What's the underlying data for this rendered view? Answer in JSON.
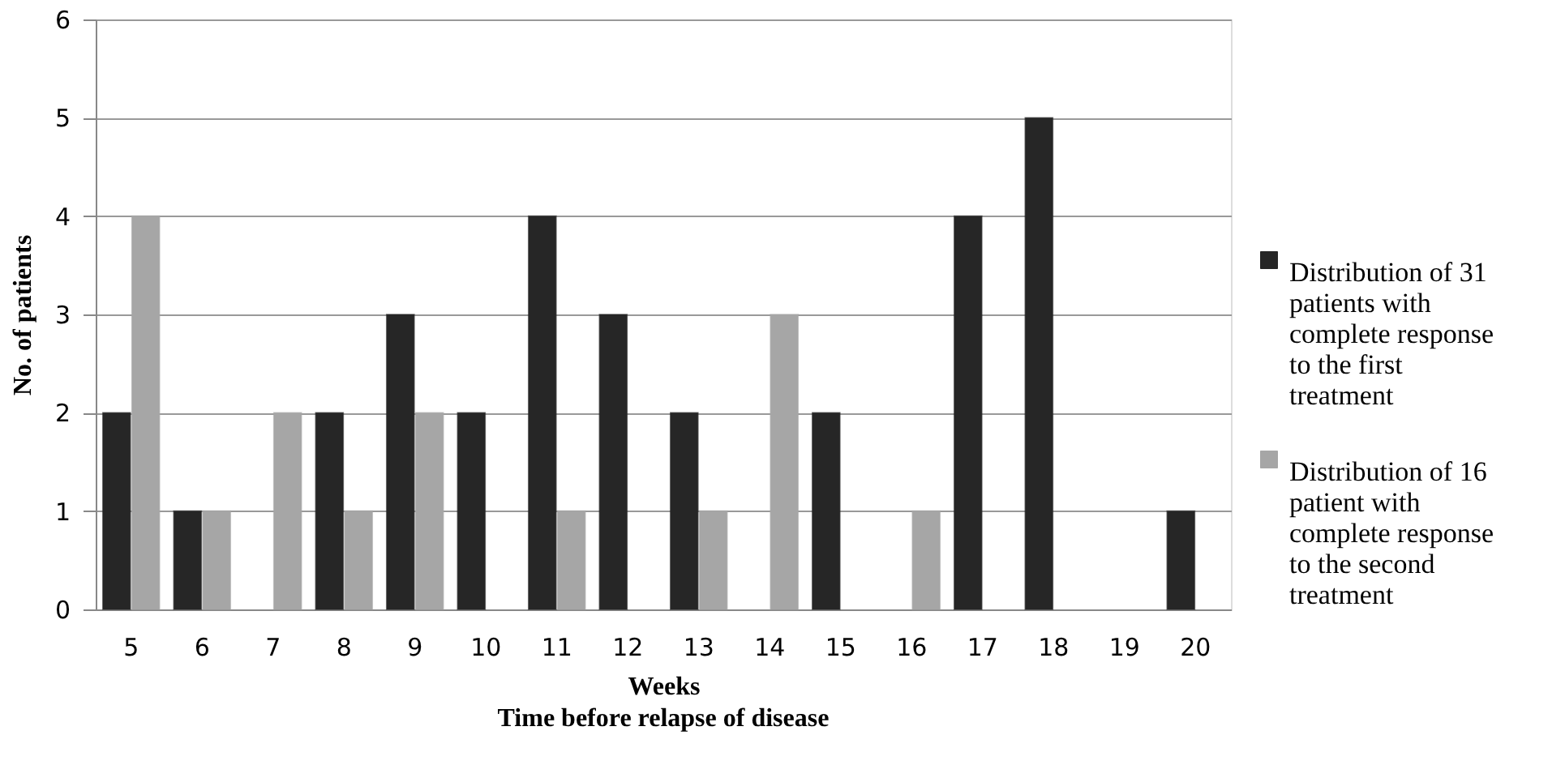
{
  "chart_data": {
    "type": "bar",
    "xlabel": "Weeks",
    "ylabel": "No. of patients",
    "annotations": [
      "Time before relapse of disease"
    ],
    "categories": [
      "5",
      "6",
      "7",
      "8",
      "9",
      "10",
      "11",
      "12",
      "13",
      "14",
      "15",
      "16",
      "17",
      "18",
      "19",
      "20"
    ],
    "series": [
      {
        "name": "Distribution of 31 patients with complete response to the first treatment",
        "color": "#262626",
        "values": [
          2,
          1,
          0,
          2,
          3,
          2,
          4,
          3,
          2,
          0,
          2,
          0,
          4,
          5,
          0,
          1
        ]
      },
      {
        "name": "Distribution of 16 patient with complete response to the second treatment",
        "color": "#a6a6a6",
        "values": [
          4,
          1,
          2,
          1,
          2,
          0,
          1,
          0,
          1,
          3,
          0,
          1,
          0,
          0,
          0,
          0
        ]
      }
    ],
    "ylim": [
      0,
      6
    ],
    "yticks": [
      0,
      1,
      2,
      3,
      4,
      5,
      6
    ],
    "grid": "y",
    "legend": "right"
  }
}
